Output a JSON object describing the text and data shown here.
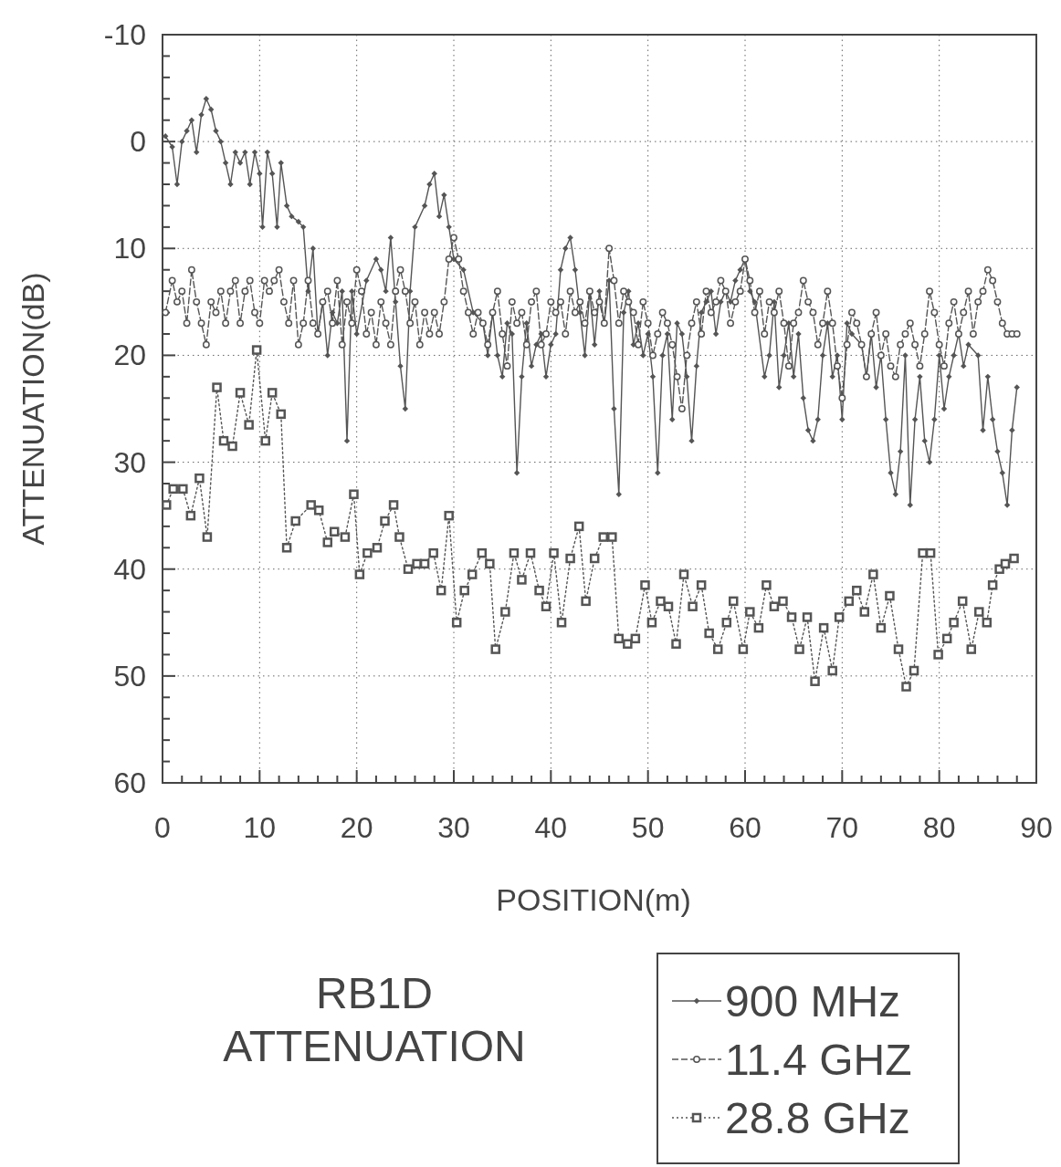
{
  "chart_data": {
    "type": "line",
    "title": "RB1D ATTENUATION",
    "xlabel": "POSITION(m)",
    "ylabel": "ATTENUATION(dB)",
    "xlim": [
      0,
      90
    ],
    "ylim": [
      60,
      -10
    ],
    "xticks": [
      0,
      {
        "value": 2,
        "label": null
      },
      {
        "value": 4,
        "label": null
      },
      {
        "value": 6,
        "label": null
      },
      {
        "value": 8,
        "label": null
      },
      10,
      {
        "value": 12,
        "label": null
      },
      {
        "value": 14,
        "label": null
      },
      {
        "value": 16,
        "label": null
      },
      {
        "value": 18,
        "label": null
      },
      20,
      {
        "value": 22,
        "label": null
      },
      {
        "value": 24,
        "label": null
      },
      {
        "value": 26,
        "label": null
      },
      {
        "value": 28,
        "label": null
      },
      30,
      {
        "value": 32,
        "label": null
      },
      {
        "value": 34,
        "label": null
      },
      {
        "value": 36,
        "label": null
      },
      {
        "value": 38,
        "label": null
      },
      40,
      {
        "value": 42,
        "label": null
      },
      {
        "value": 44,
        "label": null
      },
      {
        "value": 46,
        "label": null
      },
      {
        "value": 48,
        "label": null
      },
      50,
      {
        "value": 52,
        "label": null
      },
      {
        "value": 54,
        "label": null
      },
      {
        "value": 56,
        "label": null
      },
      {
        "value": 58,
        "label": null
      },
      60,
      {
        "value": 62,
        "label": null
      },
      {
        "value": 64,
        "label": null
      },
      {
        "value": 66,
        "label": null
      },
      {
        "value": 68,
        "label": null
      },
      70,
      {
        "value": 72,
        "label": null
      },
      {
        "value": 74,
        "label": null
      },
      {
        "value": 76,
        "label": null
      },
      {
        "value": 78,
        "label": null
      },
      80,
      {
        "value": 82,
        "label": null
      },
      {
        "value": 84,
        "label": null
      },
      {
        "value": 86,
        "label": null
      },
      {
        "value": 88,
        "label": null
      },
      90
    ],
    "yticks": [
      -10,
      {
        "value": -8,
        "label": null
      },
      {
        "value": -6,
        "label": null
      },
      {
        "value": -4,
        "label": null
      },
      {
        "value": -2,
        "label": null
      },
      0,
      {
        "value": 2,
        "label": null
      },
      {
        "value": 4,
        "label": null
      },
      {
        "value": 6,
        "label": null
      },
      {
        "value": 8,
        "label": null
      },
      10,
      {
        "value": 12,
        "label": null
      },
      {
        "value": 14,
        "label": null
      },
      {
        "value": 16,
        "label": null
      },
      {
        "value": 18,
        "label": null
      },
      20,
      {
        "value": 22,
        "label": null
      },
      {
        "value": 24,
        "label": null
      },
      {
        "value": 26,
        "label": null
      },
      {
        "value": 28,
        "label": null
      },
      30,
      {
        "value": 32,
        "label": null
      },
      {
        "value": 34,
        "label": null
      },
      {
        "value": 36,
        "label": null
      },
      {
        "value": 38,
        "label": null
      },
      40,
      {
        "value": 42,
        "label": null
      },
      {
        "value": 44,
        "label": null
      },
      {
        "value": 46,
        "label": null
      },
      {
        "value": 48,
        "label": null
      },
      50,
      {
        "value": 52,
        "label": null
      },
      {
        "value": 54,
        "label": null
      },
      {
        "value": 56,
        "label": null
      },
      {
        "value": 58,
        "label": null
      },
      60
    ],
    "grid": true,
    "legend": "bottom right",
    "series": [
      {
        "name": "900 MHz",
        "color": "#555555",
        "marker": "diamond",
        "line_style": "solid",
        "x": [
          0.3,
          1,
          1.5,
          2,
          2.5,
          3,
          3.5,
          4,
          4.5,
          5,
          5.5,
          6,
          6.5,
          7,
          7.5,
          8,
          8.5,
          9,
          9.5,
          10,
          10.3,
          10.8,
          11.3,
          11.8,
          12.2,
          12.8,
          13.3,
          14,
          14.5,
          15,
          15.5,
          16,
          16.5,
          17,
          17.5,
          18,
          18.5,
          19,
          19.5,
          20,
          21,
          22,
          22.5,
          23,
          23.5,
          24,
          24.5,
          25,
          25.5,
          26,
          27,
          27.5,
          28,
          28.5,
          29,
          29.5,
          30,
          31,
          32,
          33,
          33.5,
          34,
          34.5,
          35,
          35.5,
          36,
          36.5,
          37,
          37.5,
          38,
          38.5,
          39,
          39.5,
          40,
          40.5,
          41,
          41.5,
          42,
          42.5,
          43,
          43.5,
          44,
          44.5,
          45,
          45.5,
          46,
          46.5,
          47,
          47.5,
          48,
          48.5,
          49,
          49.5,
          50,
          50.5,
          51,
          51.5,
          52,
          52.5,
          53,
          53.5,
          54,
          54.5,
          55,
          55.5,
          56,
          56.5,
          57,
          57.5,
          58,
          58.5,
          59,
          59.5,
          60,
          60.5,
          61,
          62,
          62.5,
          63,
          63.5,
          64,
          64.5,
          65,
          65.5,
          66,
          66.5,
          67,
          67.5,
          68,
          68.5,
          69,
          69.5,
          70,
          70.5,
          71,
          72,
          72.5,
          73,
          73.5,
          74,
          74.5,
          75,
          75.5,
          76,
          76.5,
          77,
          77.5,
          78,
          78.5,
          79,
          79.5,
          80,
          80.5,
          81,
          81.5,
          82,
          82.5,
          83,
          84,
          84.5,
          85,
          85.5,
          86,
          86.5,
          87,
          87.5,
          88
        ],
        "values": [
          -0.5,
          0.5,
          4,
          0,
          -1,
          -2,
          1,
          -2.5,
          -4,
          -3,
          -1,
          0,
          2,
          4,
          1,
          2,
          1,
          4,
          1,
          3,
          8,
          1,
          3,
          8,
          2,
          6,
          7,
          7.5,
          8,
          14,
          10,
          18,
          15,
          20,
          16,
          17,
          14,
          28,
          14,
          18,
          13,
          11,
          12,
          14,
          9,
          15,
          21,
          25,
          14,
          8,
          6,
          4,
          3,
          7,
          5,
          8,
          11,
          12,
          16,
          17,
          20,
          16,
          20,
          22,
          17,
          18,
          31,
          22,
          17,
          21,
          19,
          18,
          22,
          19,
          18,
          12,
          10,
          9,
          12,
          16,
          20,
          14,
          19,
          14,
          17,
          13,
          25,
          33,
          16,
          14,
          19,
          17,
          20,
          18,
          22,
          31,
          20,
          18,
          26,
          17,
          18,
          22,
          28,
          21,
          16,
          15,
          14,
          18,
          15,
          14,
          15,
          13,
          12,
          11,
          14,
          15,
          22,
          20,
          15,
          23,
          20,
          17,
          22,
          18,
          24,
          27,
          28,
          26,
          20,
          17,
          22,
          20,
          26,
          17,
          18,
          19,
          22,
          18,
          23,
          20,
          26,
          31,
          33,
          29,
          20,
          34,
          26,
          22,
          28,
          30,
          26,
          20,
          25,
          22,
          20,
          18,
          21,
          19,
          20,
          27,
          22,
          26,
          29,
          31,
          34,
          27,
          23
        ]
      },
      {
        "name": "11.4 GHZ",
        "color": "#555555",
        "marker": "circle",
        "line_style": "dashed",
        "x": [
          0.3,
          1,
          1.5,
          2,
          2.5,
          3,
          3.5,
          4,
          4.5,
          5,
          5.5,
          6,
          6.5,
          7,
          7.5,
          8,
          8.5,
          9,
          9.5,
          10,
          10.5,
          11,
          11.5,
          12,
          12.5,
          13,
          13.5,
          14,
          14.5,
          15,
          15.5,
          16,
          16.5,
          17,
          17.5,
          18,
          18.5,
          19,
          19.5,
          20,
          20.5,
          21,
          21.5,
          22,
          22.5,
          23,
          23.5,
          24,
          24.5,
          25,
          25.5,
          26,
          26.5,
          27,
          27.5,
          28,
          28.5,
          29,
          29.5,
          30,
          30.5,
          31,
          31.5,
          32,
          32.5,
          33,
          33.5,
          34,
          34.5,
          35,
          35.5,
          36,
          36.5,
          37,
          37.5,
          38,
          38.5,
          39,
          39.5,
          40,
          40.5,
          41,
          41.5,
          42,
          42.5,
          43,
          43.5,
          44,
          44.5,
          45,
          45.5,
          46,
          46.5,
          47,
          47.5,
          48,
          48.5,
          49,
          49.5,
          50,
          50.5,
          51,
          51.5,
          52,
          52.5,
          53,
          53.5,
          54,
          54.5,
          55,
          55.5,
          56,
          56.5,
          57,
          57.5,
          58,
          58.5,
          59,
          59.5,
          60,
          60.5,
          61,
          61.5,
          62,
          62.5,
          63,
          63.5,
          64,
          64.5,
          65,
          65.5,
          66,
          66.5,
          67,
          67.5,
          68,
          68.5,
          69,
          69.5,
          70,
          70.5,
          71,
          71.5,
          72,
          72.5,
          73,
          73.5,
          74,
          74.5,
          75,
          75.5,
          76,
          76.5,
          77,
          77.5,
          78,
          78.5,
          79,
          79.5,
          80,
          80.5,
          81,
          81.5,
          82,
          82.5,
          83,
          83.5,
          84,
          84.5,
          85,
          85.5,
          86,
          86.5,
          87,
          87.5,
          88
        ],
        "values": [
          16,
          13,
          15,
          14,
          17,
          12,
          15,
          17,
          19,
          15,
          16,
          14,
          17,
          14,
          13,
          17,
          14,
          13,
          16,
          17,
          13,
          14,
          13,
          12,
          15,
          17,
          13,
          19,
          17,
          13,
          17,
          18,
          15,
          14,
          17,
          13,
          19,
          15,
          17,
          12,
          14,
          18,
          16,
          19,
          15,
          17,
          19,
          14,
          12,
          14,
          17,
          15,
          19,
          16,
          18,
          16,
          18,
          15,
          11,
          9,
          11,
          14,
          16,
          18,
          16,
          17,
          19,
          16,
          14,
          18,
          21,
          15,
          17,
          16,
          19,
          15,
          14,
          19,
          18,
          15,
          16,
          15,
          18,
          14,
          16,
          15,
          17,
          14,
          16,
          15,
          17,
          10,
          13,
          17,
          14,
          15,
          16,
          19,
          15,
          17,
          20,
          18,
          16,
          17,
          19,
          22,
          25,
          20,
          17,
          15,
          18,
          14,
          16,
          15,
          13,
          14,
          17,
          15,
          14,
          11,
          13,
          16,
          14,
          18,
          15,
          16,
          14,
          17,
          21,
          17,
          16,
          13,
          15,
          16,
          19,
          17,
          14,
          17,
          21,
          24,
          19,
          16,
          17,
          19,
          22,
          18,
          16,
          20,
          18,
          21,
          22,
          19,
          18,
          17,
          19,
          21,
          18,
          14,
          16,
          19,
          21,
          17,
          15,
          18,
          16,
          14,
          18,
          15,
          14,
          12,
          13,
          15,
          17,
          18,
          18,
          18
        ]
      },
      {
        "name": "28.8 GHz",
        "color": "#555555",
        "marker": "square",
        "line_style": "dotted",
        "x": [
          0.4,
          1.1,
          2.1,
          2.9,
          3.8,
          4.6,
          5.6,
          6.3,
          7.2,
          8,
          8.9,
          9.7,
          10.6,
          11.3,
          12.2,
          12.8,
          13.7,
          15.3,
          16.1,
          17,
          17.7,
          18.8,
          19.7,
          20.3,
          21.1,
          22.1,
          22.9,
          23.8,
          24.4,
          25.3,
          26.2,
          27,
          27.9,
          28.7,
          29.5,
          30.3,
          31.1,
          31.9,
          32.9,
          33.7,
          34.3,
          35.3,
          36.2,
          37,
          37.9,
          38.8,
          39.5,
          40.3,
          41.1,
          42,
          42.9,
          43.6,
          44.5,
          45.4,
          46.3,
          47,
          47.9,
          48.7,
          49.7,
          50.4,
          51.3,
          52.1,
          52.9,
          53.7,
          54.6,
          55.5,
          56.3,
          57.2,
          58.1,
          58.8,
          59.8,
          60.5,
          61.4,
          62.2,
          63,
          63.9,
          64.8,
          65.6,
          66.4,
          67.2,
          68.1,
          69,
          69.7,
          70.7,
          71.5,
          72.3,
          73.2,
          74,
          74.9,
          75.8,
          76.6,
          77.4,
          78.3,
          79.1,
          79.9,
          80.8,
          81.5,
          82.4,
          83.3,
          84.1,
          84.9,
          85.5,
          86.2,
          86.8,
          87.7
        ],
        "values": [
          34,
          32.5,
          32.5,
          35,
          31.5,
          37,
          23,
          28,
          28.5,
          23.5,
          26.5,
          19.5,
          28,
          23.5,
          25.5,
          38,
          35.5,
          34,
          34.5,
          37.5,
          36.5,
          37,
          33,
          40.5,
          38.5,
          38,
          35.5,
          34,
          37,
          40,
          39.5,
          39.5,
          38.5,
          42,
          35,
          45,
          42,
          40.5,
          38.5,
          39.5,
          47.5,
          44,
          38.5,
          41,
          38.5,
          42,
          43.5,
          38.5,
          45,
          39,
          36,
          43,
          39,
          37,
          37,
          46.5,
          47,
          46.5,
          41.5,
          45,
          43,
          43.5,
          47,
          40.5,
          43.5,
          41.5,
          46,
          47.5,
          45,
          43,
          47.5,
          44,
          45.5,
          41.5,
          43.5,
          43,
          44.5,
          47.5,
          44.5,
          50.5,
          45.5,
          49.5,
          44.5,
          43,
          42,
          44,
          40.5,
          45.5,
          42.5,
          47.5,
          51,
          49.5,
          38.5,
          38.5,
          48,
          46.5,
          45,
          43,
          47.5,
          44,
          45,
          41.5,
          40,
          39.5,
          39
        ]
      }
    ]
  }
}
